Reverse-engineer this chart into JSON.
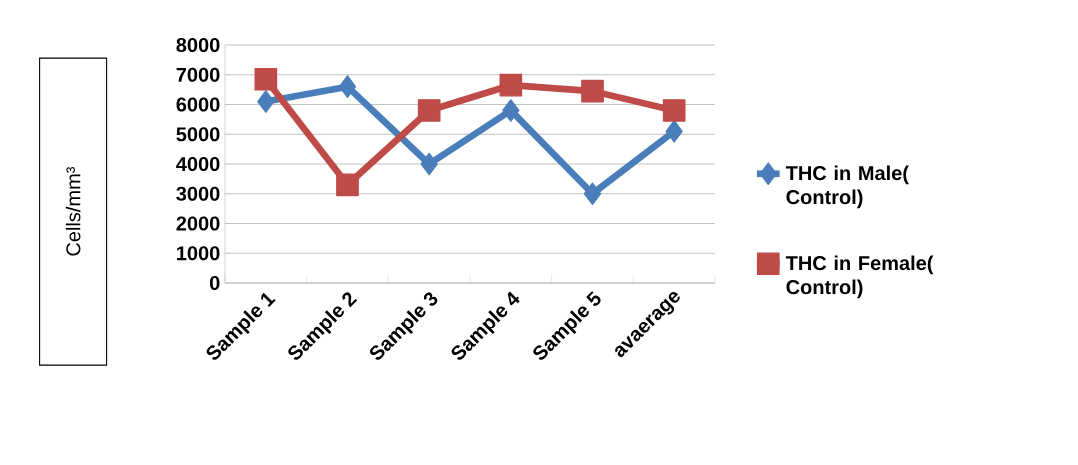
{
  "chart_data": {
    "type": "line",
    "ylabel": "Cells/mm³",
    "categories": [
      "Sample 1",
      "Sample 2",
      "Sample 3",
      "Sample 4",
      "Sample 5",
      "avaerage"
    ],
    "series": [
      {
        "name": "THC in Male( Control)",
        "color": "#4a7ebb",
        "marker": "diamond",
        "values": [
          6100,
          6600,
          4000,
          5800,
          3000,
          5100
        ]
      },
      {
        "name": "THC in Female( Control)",
        "color": "#be4b48",
        "marker": "square",
        "values": [
          6850,
          3300,
          5800,
          6650,
          6450,
          5800
        ]
      }
    ],
    "ylim": [
      0,
      8000
    ],
    "yticks": [
      0,
      1000,
      2000,
      3000,
      4000,
      5000,
      6000,
      7000,
      8000
    ],
    "grid": "y",
    "legend": "right",
    "line_style": "solid"
  }
}
